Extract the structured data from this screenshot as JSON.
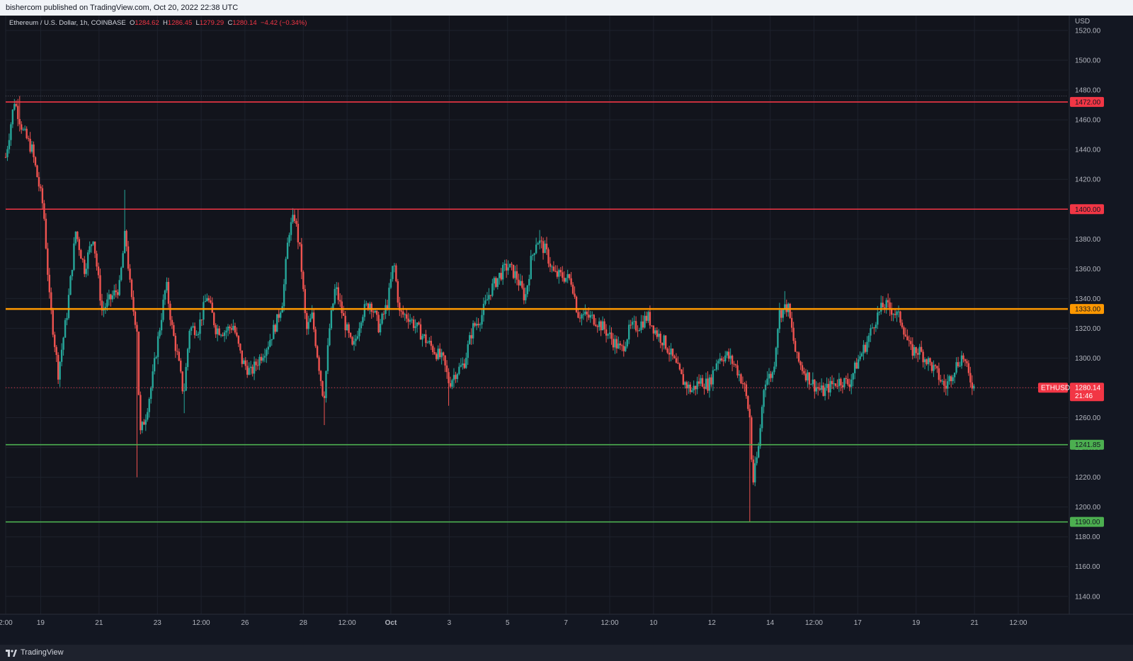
{
  "publish_bar": {
    "text": "bishercom published on TradingView.com, Oct 20, 2022 22:38 UTC"
  },
  "legend": {
    "symbol": "Ethereum / U.S. Dollar, 1h, COINBASE",
    "o_label": "O",
    "o_value": "1284.62",
    "h_label": "H",
    "h_value": "1286.45",
    "l_label": "L",
    "l_value": "1279.29",
    "c_label": "C",
    "c_value": "1280.14",
    "change": "−4.42 (−0.34%)"
  },
  "footer": {
    "brand": "TradingView"
  },
  "colors": {
    "background": "#12141c",
    "grid": "#1e222d",
    "up": "#26a69a",
    "down": "#ef5350",
    "resistance": "#f23645",
    "pivot": "#ff9800",
    "support": "#4caf50",
    "last_price": "#f23645"
  },
  "chart_data": {
    "type": "candlestick",
    "symbol_tag": "ETHUSD",
    "currency": "USD",
    "ylim": [
      1128,
      1530
    ],
    "y_ticks": [
      "1520.00",
      "1500.00",
      "1480.00",
      "1460.00",
      "1440.00",
      "1420.00",
      "1400.00",
      "1380.00",
      "1360.00",
      "1340.00",
      "1320.00",
      "1300.00",
      "1280.00",
      "1260.00",
      "1240.00",
      "1220.00",
      "1200.00",
      "1180.00",
      "1160.00",
      "1140.00"
    ],
    "x_ticks": [
      {
        "label": "2:00",
        "t": 0.0
      },
      {
        "label": "19",
        "t": 1.2
      },
      {
        "label": "21",
        "t": 3.2
      },
      {
        "label": "23",
        "t": 5.2
      },
      {
        "label": "12:00",
        "t": 6.7
      },
      {
        "label": "26",
        "t": 8.2
      },
      {
        "label": "28",
        "t": 10.2
      },
      {
        "label": "12:00",
        "t": 11.7
      },
      {
        "label": "Oct",
        "t": 13.2
      },
      {
        "label": "3",
        "t": 15.2
      },
      {
        "label": "5",
        "t": 17.2
      },
      {
        "label": "7",
        "t": 19.2
      },
      {
        "label": "12:00",
        "t": 20.7
      },
      {
        "label": "10",
        "t": 22.2
      },
      {
        "label": "12",
        "t": 24.2
      },
      {
        "label": "14",
        "t": 26.2
      },
      {
        "label": "12:00",
        "t": 27.7
      },
      {
        "label": "17",
        "t": 29.2
      },
      {
        "label": "19",
        "t": 31.2
      },
      {
        "label": "21",
        "t": 33.2
      },
      {
        "label": "12:00",
        "t": 34.7
      }
    ],
    "t_range": [
      0,
      36.4
    ],
    "last_t": 33.2,
    "levels": [
      {
        "price": 1472.0,
        "label": "1472.00",
        "kind": "resistance"
      },
      {
        "price": 1400.0,
        "label": "1400.00",
        "kind": "resistance"
      },
      {
        "price": 1333.0,
        "label": "1333.00",
        "kind": "pivot"
      },
      {
        "price": 1241.85,
        "label": "1241.85",
        "kind": "support"
      },
      {
        "price": 1190.0,
        "label": "1190.00",
        "kind": "support"
      }
    ],
    "last_price": {
      "value": 1280.14,
      "label": "1280.14",
      "countdown": "21:46"
    },
    "high_marker": 1476,
    "path": [
      [
        0.0,
        1435
      ],
      [
        0.3,
        1473
      ],
      [
        0.6,
        1452
      ],
      [
        0.9,
        1440
      ],
      [
        1.1,
        1420
      ],
      [
        1.3,
        1400
      ],
      [
        1.5,
        1340
      ],
      [
        1.8,
        1290
      ],
      [
        2.1,
        1330
      ],
      [
        2.4,
        1385
      ],
      [
        2.7,
        1360
      ],
      [
        3.0,
        1382
      ],
      [
        3.3,
        1332
      ],
      [
        3.6,
        1340
      ],
      [
        3.9,
        1348
      ],
      [
        4.1,
        1385
      ],
      [
        4.3,
        1340
      ],
      [
        4.5,
        1320
      ],
      [
        4.6,
        1248
      ],
      [
        4.8,
        1262
      ],
      [
        5.0,
        1282
      ],
      [
        5.2,
        1310
      ],
      [
        5.5,
        1350
      ],
      [
        5.7,
        1320
      ],
      [
        5.9,
        1300
      ],
      [
        6.1,
        1275
      ],
      [
        6.3,
        1320
      ],
      [
        6.6,
        1320
      ],
      [
        6.9,
        1342
      ],
      [
        7.2,
        1320
      ],
      [
        7.5,
        1318
      ],
      [
        7.8,
        1322
      ],
      [
        8.1,
        1298
      ],
      [
        8.4,
        1290
      ],
      [
        8.7,
        1300
      ],
      [
        9.0,
        1310
      ],
      [
        9.3,
        1325
      ],
      [
        9.5,
        1340
      ],
      [
        9.7,
        1385
      ],
      [
        9.9,
        1395
      ],
      [
        10.1,
        1370
      ],
      [
        10.3,
        1318
      ],
      [
        10.5,
        1328
      ],
      [
        10.7,
        1300
      ],
      [
        10.9,
        1272
      ],
      [
        11.1,
        1320
      ],
      [
        11.3,
        1348
      ],
      [
        11.6,
        1325
      ],
      [
        11.9,
        1305
      ],
      [
        12.2,
        1330
      ],
      [
        12.5,
        1338
      ],
      [
        12.8,
        1320
      ],
      [
        13.1,
        1338
      ],
      [
        13.3,
        1365
      ],
      [
        13.5,
        1330
      ],
      [
        13.8,
        1328
      ],
      [
        14.1,
        1320
      ],
      [
        14.4,
        1312
      ],
      [
        14.7,
        1305
      ],
      [
        15.0,
        1298
      ],
      [
        15.2,
        1283
      ],
      [
        15.4,
        1290
      ],
      [
        15.7,
        1296
      ],
      [
        16.0,
        1320
      ],
      [
        16.3,
        1328
      ],
      [
        16.6,
        1345
      ],
      [
        16.9,
        1355
      ],
      [
        17.2,
        1362
      ],
      [
        17.5,
        1355
      ],
      [
        17.8,
        1340
      ],
      [
        18.0,
        1365
      ],
      [
        18.2,
        1380
      ],
      [
        18.5,
        1372
      ],
      [
        18.8,
        1356
      ],
      [
        19.1,
        1355
      ],
      [
        19.4,
        1352
      ],
      [
        19.6,
        1330
      ],
      [
        19.9,
        1328
      ],
      [
        20.2,
        1326
      ],
      [
        20.5,
        1320
      ],
      [
        20.8,
        1312
      ],
      [
        21.1,
        1305
      ],
      [
        21.4,
        1320
      ],
      [
        21.7,
        1322
      ],
      [
        22.0,
        1328
      ],
      [
        22.3,
        1317
      ],
      [
        22.6,
        1310
      ],
      [
        22.9,
        1298
      ],
      [
        23.2,
        1285
      ],
      [
        23.5,
        1278
      ],
      [
        23.8,
        1285
      ],
      [
        24.1,
        1282
      ],
      [
        24.4,
        1300
      ],
      [
        24.7,
        1302
      ],
      [
        25.0,
        1295
      ],
      [
        25.3,
        1282
      ],
      [
        25.5,
        1260
      ],
      [
        25.6,
        1215
      ],
      [
        25.8,
        1240
      ],
      [
        26.0,
        1285
      ],
      [
        26.3,
        1290
      ],
      [
        26.5,
        1330
      ],
      [
        26.8,
        1335
      ],
      [
        27.1,
        1300
      ],
      [
        27.4,
        1290
      ],
      [
        27.7,
        1282
      ],
      [
        28.0,
        1277
      ],
      [
        28.3,
        1282
      ],
      [
        28.6,
        1285
      ],
      [
        28.9,
        1283
      ],
      [
        29.2,
        1298
      ],
      [
        29.5,
        1310
      ],
      [
        29.8,
        1326
      ],
      [
        30.1,
        1336
      ],
      [
        30.4,
        1332
      ],
      [
        30.7,
        1325
      ],
      [
        31.0,
        1305
      ],
      [
        31.3,
        1305
      ],
      [
        31.6,
        1298
      ],
      [
        31.9,
        1290
      ],
      [
        32.2,
        1280
      ],
      [
        32.5,
        1293
      ],
      [
        32.8,
        1302
      ],
      [
        33.0,
        1288
      ],
      [
        33.2,
        1280
      ]
    ],
    "wicks": [
      {
        "t": 4.5,
        "low": 1220
      },
      {
        "t": 4.1,
        "high": 1413
      },
      {
        "t": 25.5,
        "low": 1190
      },
      {
        "t": 10.0,
        "high": 1400
      },
      {
        "t": 0.5,
        "high": 1476
      },
      {
        "t": 10.9,
        "low": 1255
      },
      {
        "t": 18.3,
        "high": 1386
      },
      {
        "t": 26.7,
        "high": 1345
      },
      {
        "t": 30.0,
        "high": 1342
      },
      {
        "t": 15.2,
        "low": 1268
      },
      {
        "t": 6.1,
        "low": 1263
      }
    ]
  }
}
